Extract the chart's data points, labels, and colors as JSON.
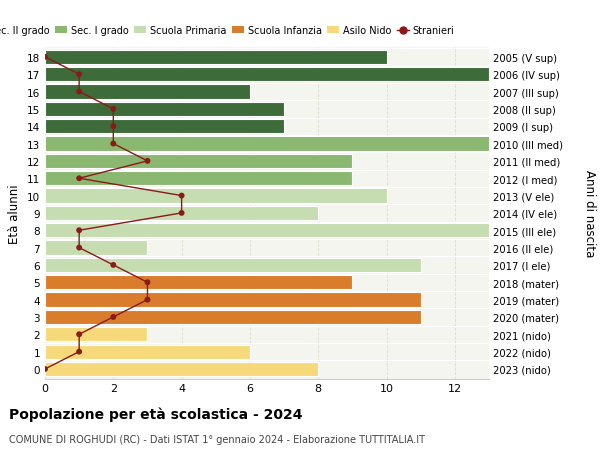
{
  "ages": [
    18,
    17,
    16,
    15,
    14,
    13,
    12,
    11,
    10,
    9,
    8,
    7,
    6,
    5,
    4,
    3,
    2,
    1,
    0
  ],
  "years": [
    "2005 (V sup)",
    "2006 (IV sup)",
    "2007 (III sup)",
    "2008 (II sup)",
    "2009 (I sup)",
    "2010 (III med)",
    "2011 (II med)",
    "2012 (I med)",
    "2013 (V ele)",
    "2014 (IV ele)",
    "2015 (III ele)",
    "2016 (II ele)",
    "2017 (I ele)",
    "2018 (mater)",
    "2019 (mater)",
    "2020 (mater)",
    "2021 (nido)",
    "2022 (nido)",
    "2023 (nido)"
  ],
  "bar_values": [
    10,
    13,
    6,
    7,
    7,
    13,
    9,
    9,
    10,
    8,
    13,
    3,
    11,
    9,
    11,
    11,
    3,
    6,
    8
  ],
  "bar_colors": [
    "#3d6b3a",
    "#3d6b3a",
    "#3d6b3a",
    "#3d6b3a",
    "#3d6b3a",
    "#8ab870",
    "#8ab870",
    "#8ab870",
    "#c5ddb0",
    "#c5ddb0",
    "#c5ddb0",
    "#c5ddb0",
    "#c5ddb0",
    "#d97c2b",
    "#d97c2b",
    "#d97c2b",
    "#f5d97a",
    "#f5d97a",
    "#f5d97a"
  ],
  "stranieri_values": [
    0,
    1,
    1,
    2,
    2,
    2,
    3,
    1,
    4,
    4,
    1,
    1,
    2,
    3,
    3,
    2,
    1,
    1,
    0
  ],
  "legend_labels": [
    "Sec. II grado",
    "Sec. I grado",
    "Scuola Primaria",
    "Scuola Infanzia",
    "Asilo Nido",
    "Stranieri"
  ],
  "legend_colors": [
    "#3d6b3a",
    "#8ab870",
    "#c5ddb0",
    "#d97c2b",
    "#f5d97a",
    "#8b1a1a"
  ],
  "ylabel_left": "Età alunni",
  "ylabel_right": "Anni di nascita",
  "xlim_max": 13,
  "xticks": [
    0,
    2,
    4,
    6,
    8,
    10,
    12
  ],
  "title": "Popolazione per età scolastica - 2024",
  "subtitle": "COMUNE DI ROGHUDI (RC) - Dati ISTAT 1° gennaio 2024 - Elaborazione TUTTITALIA.IT",
  "bg_color": "#ffffff",
  "plot_bg_color": "#f5f5f0",
  "bar_height": 0.82,
  "grid_color": "#ddddcc",
  "spine_color": "#cccccc"
}
